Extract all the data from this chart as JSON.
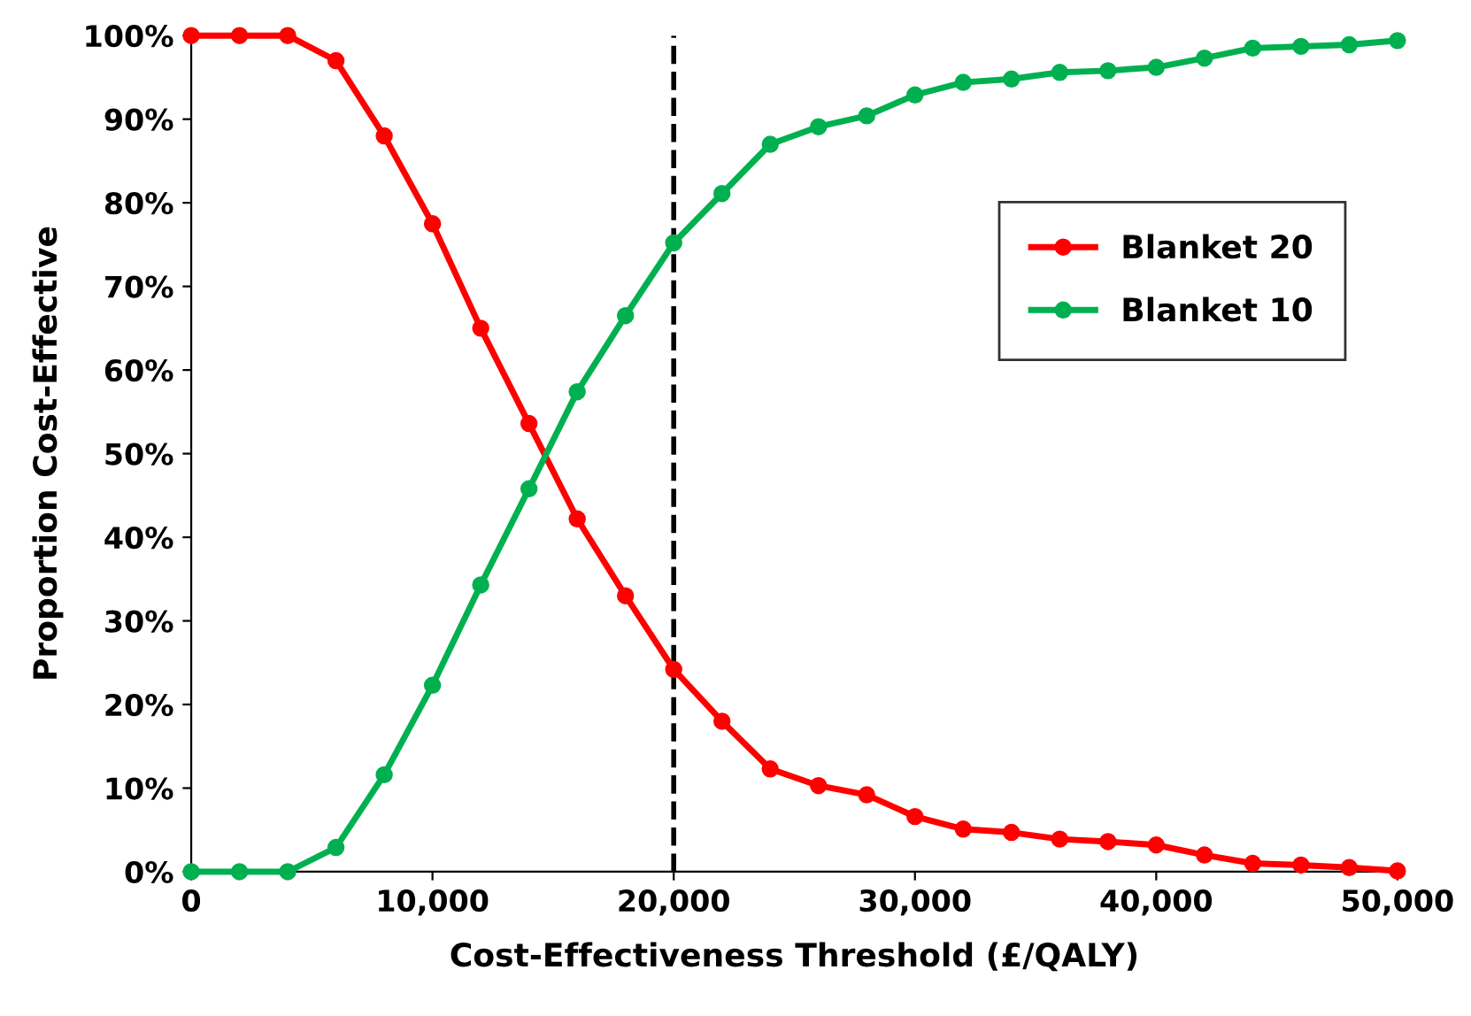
{
  "chart_data": {
    "type": "line",
    "xlabel": "Cost-Effectiveness Threshold (£/QALY)",
    "ylabel": "Proportion Cost-Effective",
    "x": [
      0,
      2000,
      4000,
      6000,
      8000,
      10000,
      12000,
      14000,
      16000,
      18000,
      20000,
      22000,
      24000,
      26000,
      28000,
      30000,
      32000,
      34000,
      36000,
      38000,
      40000,
      42000,
      44000,
      46000,
      48000,
      50000
    ],
    "series": [
      {
        "name": "Blanket 20",
        "color": "#ff0000",
        "values": [
          100,
          100,
          100,
          97,
          88,
          77.5,
          65,
          53.6,
          42.2,
          33,
          24.2,
          18,
          12.3,
          10.3,
          9.2,
          6.6,
          5.1,
          4.7,
          3.9,
          3.6,
          3.2,
          2,
          1,
          0.8,
          0.5,
          0.1
        ]
      },
      {
        "name": "Blanket 10",
        "color": "#00b050",
        "values": [
          0,
          0,
          0,
          2.9,
          11.6,
          22.3,
          34.3,
          45.8,
          57.4,
          66.5,
          75.2,
          81.1,
          87,
          89.1,
          90.4,
          92.9,
          94.4,
          94.8,
          95.6,
          95.8,
          96.2,
          97.3,
          98.5,
          98.7,
          98.9,
          99.4
        ]
      }
    ],
    "xlim": [
      0,
      50000
    ],
    "xticks": [
      0,
      {
        "value": 10000,
        "label": "10,000"
      },
      {
        "value": 20000,
        "label": "20,000"
      },
      {
        "value": 30000,
        "label": "30,000"
      },
      {
        "value": 40000,
        "label": "40,000"
      },
      {
        "value": 50000,
        "label": "50,000"
      }
    ],
    "ylim": [
      0,
      100
    ],
    "yticks": [
      {
        "value": 0,
        "label": "0%"
      },
      {
        "value": 10,
        "label": "10%"
      },
      {
        "value": 20,
        "label": "20%"
      },
      {
        "value": 30,
        "label": "30%"
      },
      {
        "value": 40,
        "label": "40%"
      },
      {
        "value": 50,
        "label": "50%"
      },
      {
        "value": 60,
        "label": "60%"
      },
      {
        "value": 70,
        "label": "70%"
      },
      {
        "value": 80,
        "label": "80%"
      },
      {
        "value": 90,
        "label": "90%"
      },
      {
        "value": 100,
        "label": "100%"
      }
    ],
    "ref_lines": [
      {
        "axis": "x",
        "value": 20000,
        "color": "#000000",
        "line_style": "dashed"
      }
    ],
    "legend": "top right",
    "marker": "circle",
    "line_style": "solid",
    "grid": false
  }
}
